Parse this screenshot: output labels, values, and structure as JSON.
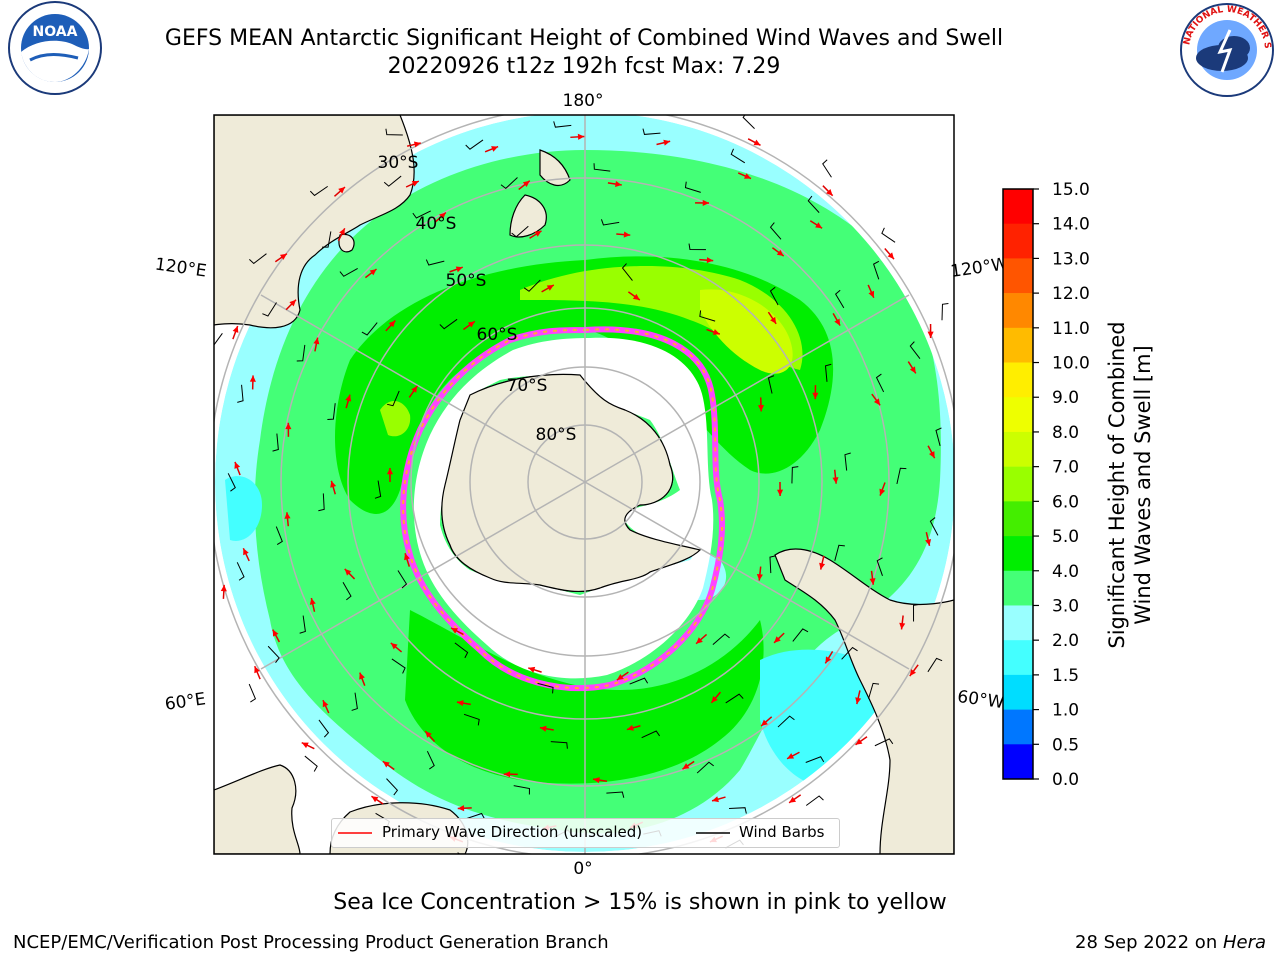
{
  "title": {
    "line1": "GEFS MEAN Antarctic Significant Height of Combined Wind Waves and Swell",
    "line2": "20220926 t12z 192h fcst   Max: 7.29"
  },
  "map": {
    "projection": "south-polar-stereographic",
    "longitude_labels": [
      "180°",
      "120°E",
      "120°W",
      "60°E",
      "60°W",
      "0°"
    ],
    "latitude_labels": [
      "30°S",
      "40°S",
      "50°S",
      "60°S",
      "70°S",
      "80°S"
    ],
    "colors": {
      "land": "#efebd9",
      "coastline": "#000000",
      "graticule": "#b4b4b4",
      "sea_ice": "#ff44ff",
      "sea_ice_edge": "#ffaa33",
      "wave_arrow": "#ff0000",
      "wind_barb": "#000000"
    }
  },
  "legend": {
    "primary_wave": "Primary Wave Direction (unscaled)",
    "wind_barbs": "Wind Barbs"
  },
  "colorbar": {
    "label_line1": "Significant Height of Combined",
    "label_line2": "Wind Waves and Swell [m]",
    "ticks": [
      "0.0",
      "0.5",
      "1.0",
      "1.5",
      "2.0",
      "3.0",
      "4.0",
      "5.0",
      "6.0",
      "7.0",
      "8.0",
      "9.0",
      "10.0",
      "11.0",
      "12.0",
      "13.0",
      "14.0",
      "15.0"
    ],
    "colors": [
      "#0000ff",
      "#0077ff",
      "#00ddff",
      "#44ffff",
      "#99ffff",
      "#44ff77",
      "#00ee00",
      "#44ee00",
      "#99ff00",
      "#ccff00",
      "#eeff00",
      "#ffee00",
      "#ffbb00",
      "#ff8800",
      "#ff5500",
      "#ff2200",
      "#ff0000"
    ]
  },
  "subtitle": "Sea Ice Concentration > 15% is shown in pink to yellow",
  "footer": {
    "left": "NCEP/EMC/Verification Post Processing Product Generation Branch",
    "right_date": "28 Sep 2022 on ",
    "right_host": "Hera"
  },
  "logos": {
    "noaa": "NOAA",
    "nws": "NATIONAL WEATHER SERVICE"
  }
}
